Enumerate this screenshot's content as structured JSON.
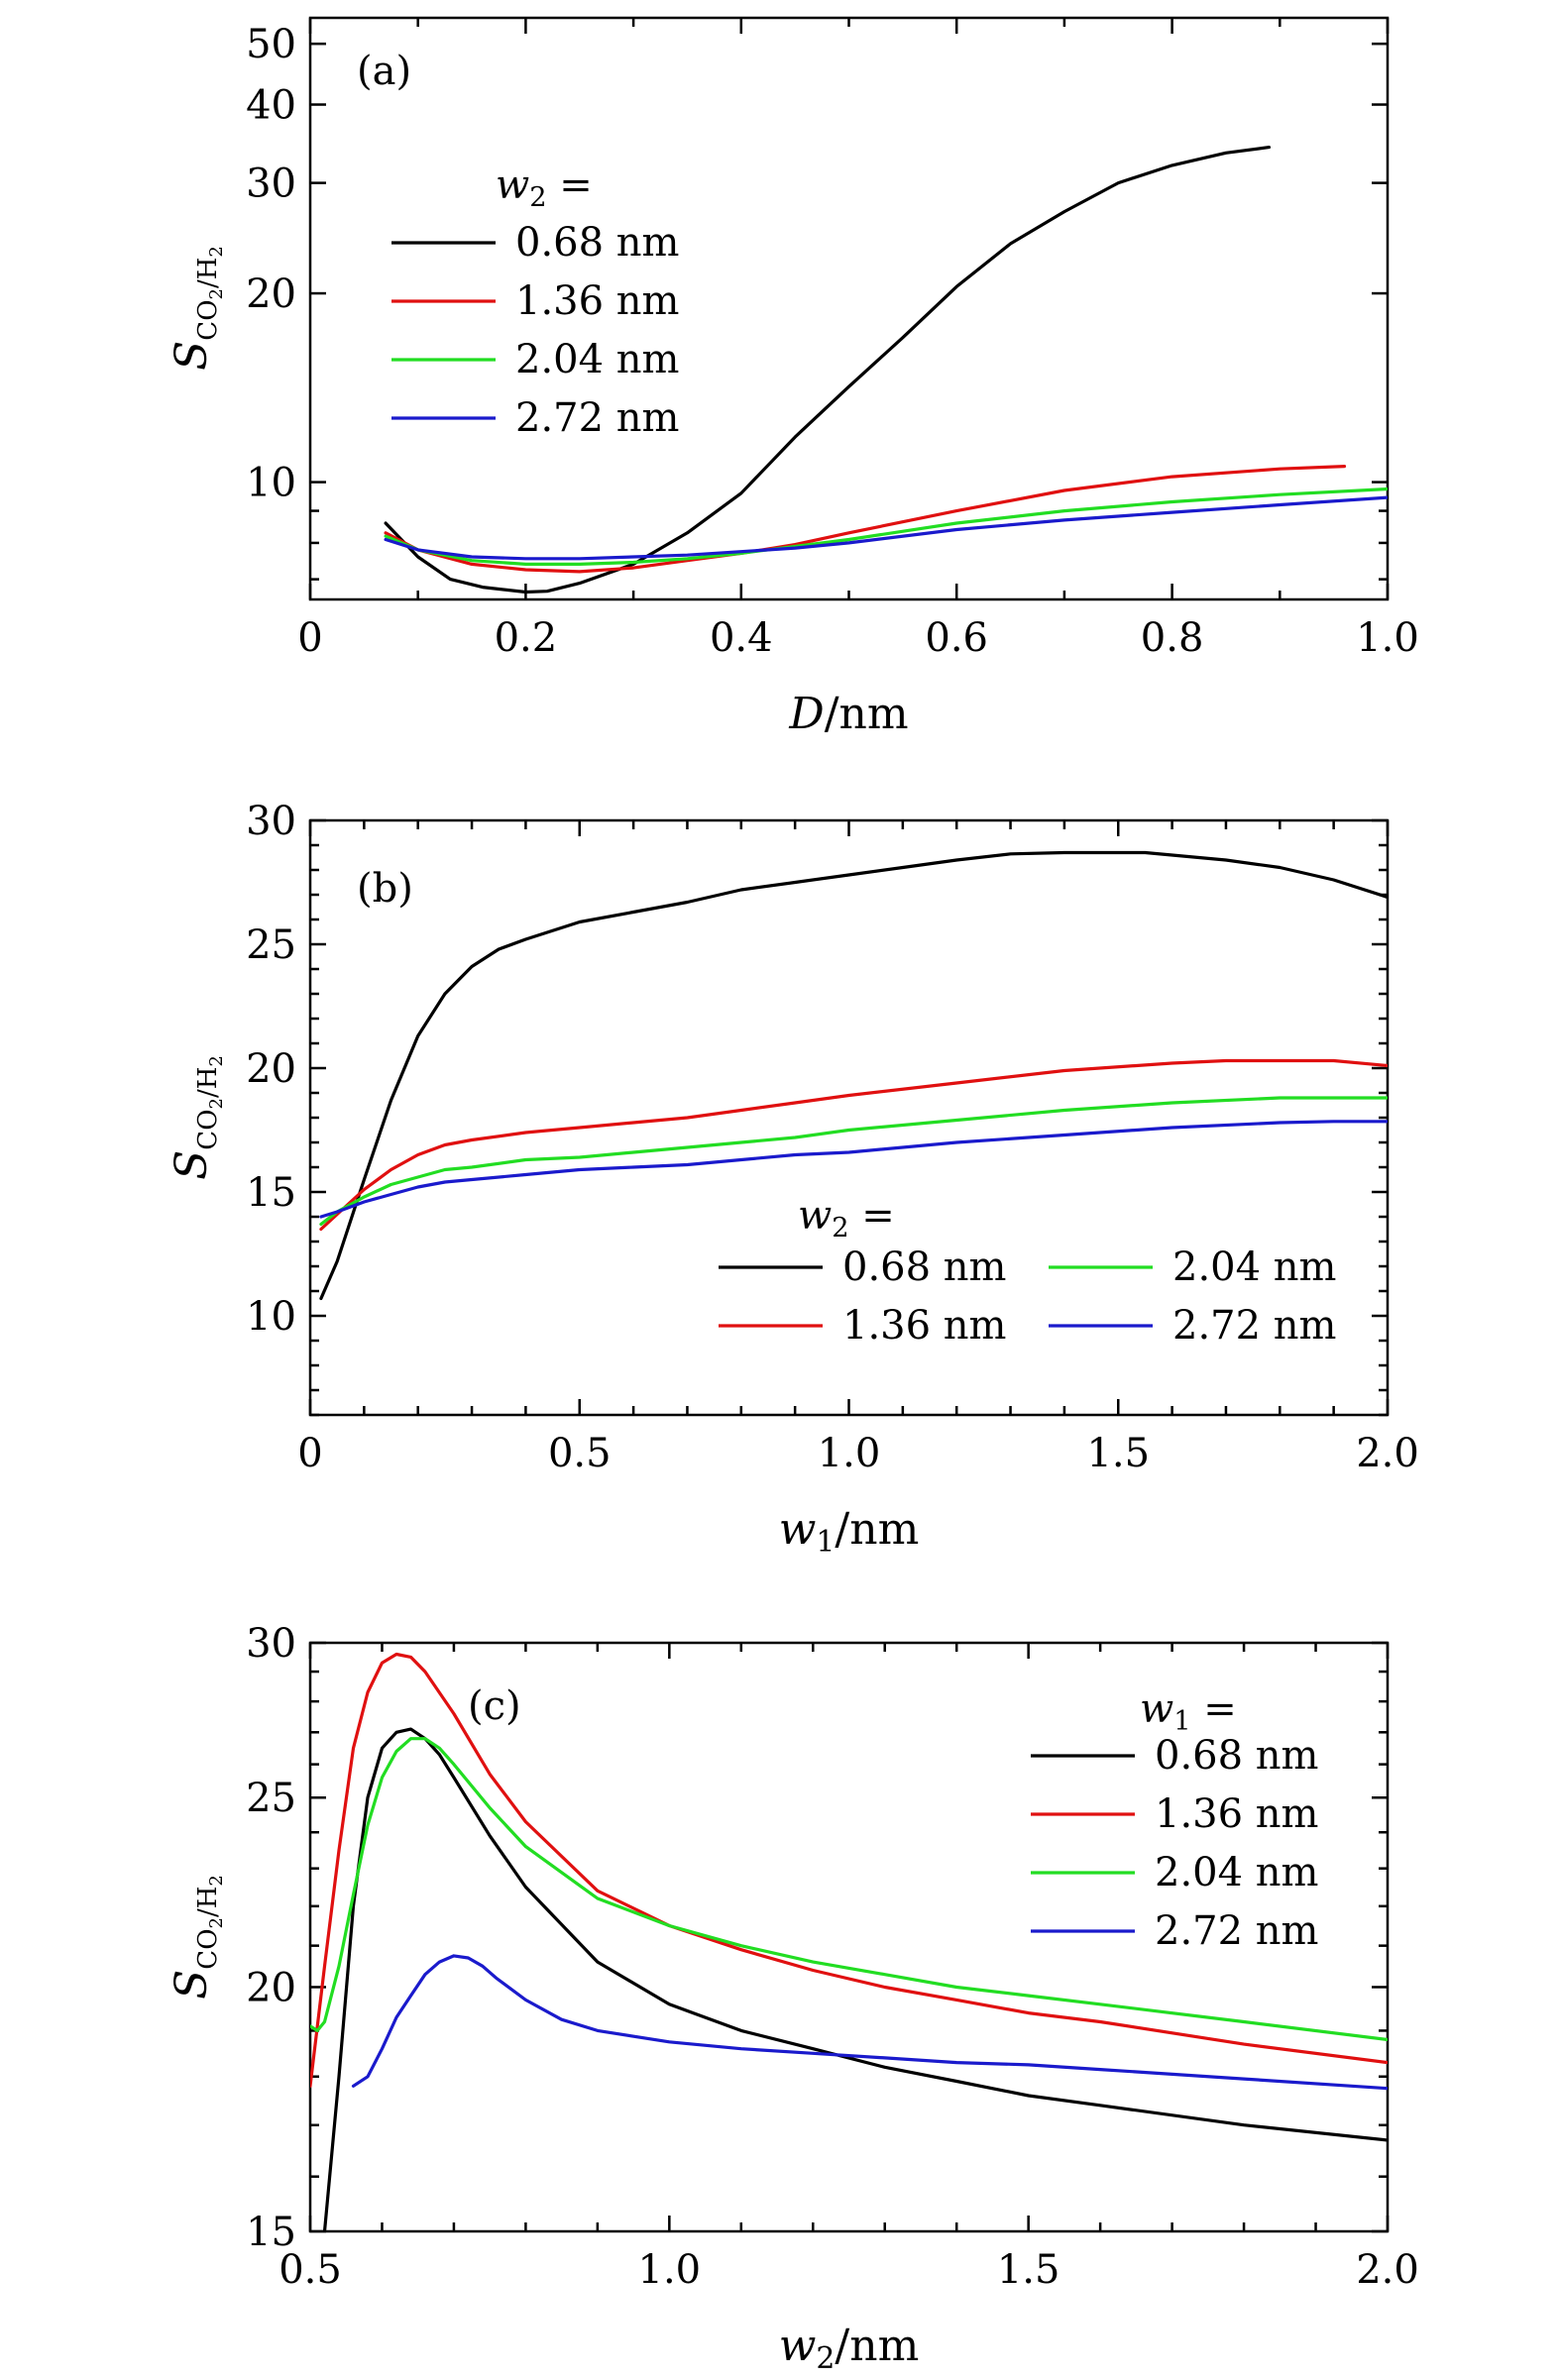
{
  "chart_data": [
    {
      "type": "line",
      "panel_label": "(a)",
      "xlabel": "D/nm",
      "ylabel": "S_CO2/H2",
      "xlim": [
        0,
        1.0
      ],
      "ylim": [
        6.5,
        55
      ],
      "yscale": "log",
      "xticks": [
        0,
        0.2,
        0.4,
        0.6,
        0.8,
        1.0
      ],
      "xtick_labels": [
        "0",
        "0.2",
        "0.4",
        "0.6",
        "0.8",
        "1.0"
      ],
      "yticks": [
        10,
        20,
        30,
        40,
        50
      ],
      "ytick_labels": [
        "10",
        "20",
        "30",
        "40",
        "50"
      ],
      "legend_title": "w2 =",
      "legend_position": "center-left",
      "series": [
        {
          "name": "0.68 nm",
          "color": "#000000",
          "x": [
            0.07,
            0.1,
            0.13,
            0.16,
            0.2,
            0.22,
            0.25,
            0.3,
            0.35,
            0.4,
            0.45,
            0.5,
            0.55,
            0.6,
            0.65,
            0.7,
            0.75,
            0.8,
            0.85,
            0.89
          ],
          "y": [
            8.6,
            7.6,
            7.0,
            6.8,
            6.68,
            6.7,
            6.9,
            7.4,
            8.3,
            9.6,
            11.8,
            14.2,
            17.0,
            20.5,
            24.0,
            27.0,
            30.0,
            32.0,
            33.5,
            34.2
          ]
        },
        {
          "name": "1.36 nm",
          "color": "#e01010",
          "x": [
            0.07,
            0.1,
            0.15,
            0.2,
            0.25,
            0.3,
            0.35,
            0.4,
            0.45,
            0.5,
            0.6,
            0.7,
            0.8,
            0.9,
            0.96
          ],
          "y": [
            8.3,
            7.8,
            7.4,
            7.25,
            7.2,
            7.3,
            7.5,
            7.7,
            7.95,
            8.3,
            9.0,
            9.7,
            10.2,
            10.5,
            10.6
          ]
        },
        {
          "name": "2.04 nm",
          "color": "#22dd22",
          "x": [
            0.07,
            0.1,
            0.15,
            0.2,
            0.25,
            0.3,
            0.35,
            0.4,
            0.45,
            0.5,
            0.6,
            0.7,
            0.8,
            0.9,
            1.0
          ],
          "y": [
            8.2,
            7.8,
            7.5,
            7.4,
            7.4,
            7.45,
            7.55,
            7.7,
            7.9,
            8.1,
            8.6,
            9.0,
            9.3,
            9.55,
            9.75
          ]
        },
        {
          "name": "2.72 nm",
          "color": "#1a1acc",
          "x": [
            0.07,
            0.1,
            0.15,
            0.2,
            0.25,
            0.3,
            0.35,
            0.4,
            0.45,
            0.5,
            0.6,
            0.7,
            0.8,
            0.9,
            1.0
          ],
          "y": [
            8.1,
            7.8,
            7.6,
            7.55,
            7.55,
            7.6,
            7.65,
            7.75,
            7.85,
            8.0,
            8.4,
            8.7,
            8.95,
            9.2,
            9.45
          ]
        }
      ]
    },
    {
      "type": "line",
      "panel_label": "(b)",
      "xlabel": "w1/nm",
      "ylabel": "S_CO2/H2",
      "xlim": [
        0,
        2.0
      ],
      "ylim": [
        6,
        30
      ],
      "yscale": "linear",
      "xticks": [
        0,
        0.5,
        1.0,
        1.5,
        2.0
      ],
      "xtick_labels": [
        "0",
        "0.5",
        "1.0",
        "1.5",
        "2.0"
      ],
      "yticks": [
        10,
        15,
        20,
        25,
        30
      ],
      "ytick_labels": [
        "10",
        "15",
        "20",
        "25",
        "30"
      ],
      "legend_title": "w2 =",
      "legend_position": "lower-right",
      "series": [
        {
          "name": "0.68 nm",
          "color": "#000000",
          "x": [
            0.02,
            0.05,
            0.1,
            0.15,
            0.2,
            0.25,
            0.3,
            0.35,
            0.4,
            0.5,
            0.6,
            0.7,
            0.8,
            0.9,
            1.0,
            1.1,
            1.2,
            1.3,
            1.4,
            1.5,
            1.55,
            1.6,
            1.7,
            1.8,
            1.9,
            2.0
          ],
          "y": [
            10.7,
            12.2,
            15.5,
            18.7,
            21.3,
            23.0,
            24.1,
            24.8,
            25.2,
            25.9,
            26.3,
            26.7,
            27.2,
            27.5,
            27.8,
            28.1,
            28.4,
            28.65,
            28.7,
            28.7,
            28.7,
            28.6,
            28.4,
            28.1,
            27.6,
            26.9
          ]
        },
        {
          "name": "1.36 nm",
          "color": "#e01010",
          "x": [
            0.02,
            0.05,
            0.1,
            0.15,
            0.2,
            0.25,
            0.3,
            0.4,
            0.5,
            0.6,
            0.7,
            0.8,
            0.9,
            1.0,
            1.2,
            1.4,
            1.6,
            1.7,
            1.8,
            1.9,
            2.0
          ],
          "y": [
            13.5,
            14.1,
            15.1,
            15.9,
            16.5,
            16.9,
            17.1,
            17.4,
            17.6,
            17.8,
            18.0,
            18.3,
            18.6,
            18.9,
            19.4,
            19.9,
            20.2,
            20.3,
            20.3,
            20.3,
            20.1
          ]
        },
        {
          "name": "2.04 nm",
          "color": "#22dd22",
          "x": [
            0.02,
            0.05,
            0.1,
            0.15,
            0.2,
            0.25,
            0.3,
            0.4,
            0.5,
            0.6,
            0.7,
            0.8,
            0.9,
            1.0,
            1.2,
            1.4,
            1.6,
            1.8,
            1.9,
            2.0
          ],
          "y": [
            13.7,
            14.2,
            14.8,
            15.3,
            15.6,
            15.9,
            16.0,
            16.3,
            16.4,
            16.6,
            16.8,
            17.0,
            17.2,
            17.5,
            17.9,
            18.3,
            18.6,
            18.8,
            18.8,
            18.8
          ]
        },
        {
          "name": "2.72 nm",
          "color": "#1a1acc",
          "x": [
            0.02,
            0.05,
            0.1,
            0.15,
            0.2,
            0.25,
            0.3,
            0.4,
            0.5,
            0.6,
            0.7,
            0.8,
            0.9,
            1.0,
            1.2,
            1.4,
            1.6,
            1.8,
            1.9,
            2.0
          ],
          "y": [
            14.0,
            14.2,
            14.6,
            14.9,
            15.2,
            15.4,
            15.5,
            15.7,
            15.9,
            16.0,
            16.1,
            16.3,
            16.5,
            16.6,
            17.0,
            17.3,
            17.6,
            17.8,
            17.85,
            17.85
          ]
        }
      ]
    },
    {
      "type": "line",
      "panel_label": "(c)",
      "xlabel": "w2/nm",
      "ylabel": "S_CO2/H2",
      "xlim": [
        0.5,
        2.0
      ],
      "ylim": [
        15,
        30
      ],
      "yscale": "log",
      "xticks": [
        0.5,
        1.0,
        1.5,
        2.0
      ],
      "xtick_labels": [
        "0.5",
        "1.0",
        "1.5",
        "2.0"
      ],
      "yticks": [
        15,
        20,
        25,
        30
      ],
      "ytick_labels": [
        "15",
        "20",
        "25",
        "30"
      ],
      "legend_title": "w1 =",
      "legend_position": "upper-right",
      "series": [
        {
          "name": "0.68 nm",
          "color": "#000000",
          "x": [
            0.52,
            0.54,
            0.56,
            0.58,
            0.6,
            0.62,
            0.64,
            0.66,
            0.68,
            0.7,
            0.75,
            0.8,
            0.9,
            1.0,
            1.1,
            1.2,
            1.3,
            1.4,
            1.5,
            1.6,
            1.8,
            2.0
          ],
          "y": [
            15.0,
            18.0,
            22.0,
            25.0,
            26.5,
            27.0,
            27.1,
            26.8,
            26.3,
            25.6,
            23.9,
            22.5,
            20.6,
            19.6,
            19.0,
            18.6,
            18.2,
            17.9,
            17.6,
            17.4,
            17.0,
            16.7
          ]
        },
        {
          "name": "1.36 nm",
          "color": "#e01010",
          "x": [
            0.5,
            0.52,
            0.54,
            0.56,
            0.58,
            0.6,
            0.62,
            0.64,
            0.66,
            0.7,
            0.75,
            0.8,
            0.9,
            1.0,
            1.1,
            1.2,
            1.3,
            1.4,
            1.5,
            1.6,
            1.8,
            2.0
          ],
          "y": [
            17.8,
            20.5,
            23.5,
            26.5,
            28.3,
            29.3,
            29.6,
            29.5,
            29.0,
            27.6,
            25.7,
            24.3,
            22.4,
            21.5,
            20.9,
            20.4,
            20.0,
            19.7,
            19.4,
            19.2,
            18.7,
            18.3
          ]
        },
        {
          "name": "2.04 nm",
          "color": "#22dd22",
          "x": [
            0.5,
            0.51,
            0.52,
            0.54,
            0.56,
            0.58,
            0.6,
            0.62,
            0.64,
            0.66,
            0.68,
            0.7,
            0.75,
            0.8,
            0.9,
            1.0,
            1.1,
            1.2,
            1.3,
            1.4,
            1.5,
            1.6,
            1.8,
            2.0
          ],
          "y": [
            19.1,
            19.0,
            19.2,
            20.5,
            22.3,
            24.2,
            25.6,
            26.4,
            26.8,
            26.8,
            26.5,
            26.0,
            24.7,
            23.6,
            22.2,
            21.5,
            21.0,
            20.6,
            20.3,
            20.0,
            19.8,
            19.6,
            19.2,
            18.8
          ]
        },
        {
          "name": "2.72 nm",
          "color": "#1a1acc",
          "x": [
            0.56,
            0.58,
            0.6,
            0.62,
            0.64,
            0.66,
            0.68,
            0.7,
            0.72,
            0.74,
            0.76,
            0.8,
            0.85,
            0.9,
            1.0,
            1.1,
            1.2,
            1.3,
            1.4,
            1.5,
            1.6,
            1.8,
            2.0
          ],
          "y": [
            17.8,
            18.0,
            18.6,
            19.3,
            19.8,
            20.3,
            20.6,
            20.75,
            20.7,
            20.5,
            20.2,
            19.7,
            19.25,
            19.0,
            18.75,
            18.6,
            18.5,
            18.4,
            18.3,
            18.25,
            18.15,
            17.95,
            17.75
          ]
        }
      ]
    }
  ]
}
